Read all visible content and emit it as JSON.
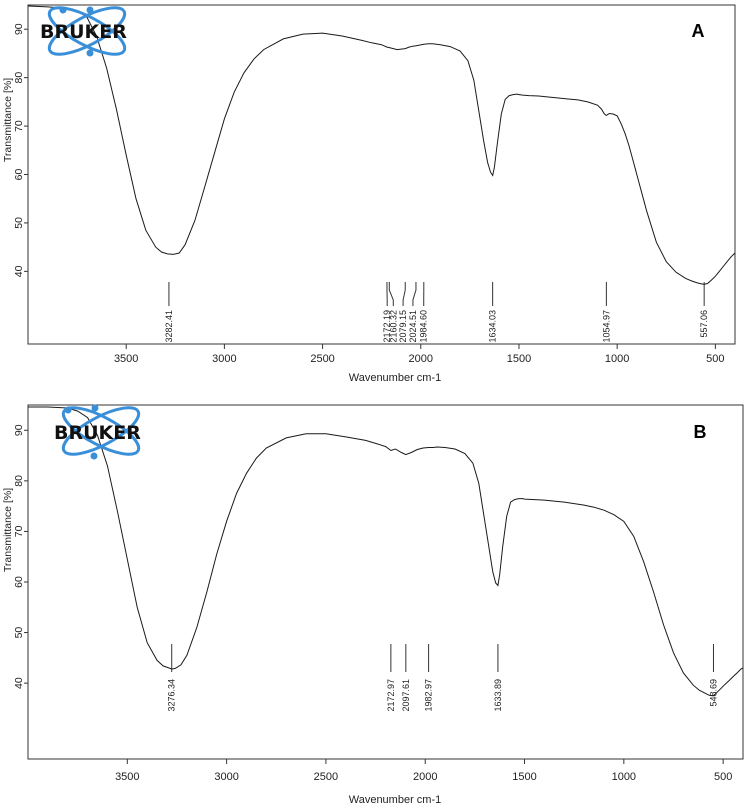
{
  "chart_data": [
    {
      "type": "line",
      "panel_label": "A",
      "logo_text": "BRUKER",
      "xlabel": "Wavenumber cm-1",
      "ylabel": "Transmittance [%]",
      "xlim": [
        4000,
        400
      ],
      "ylim": [
        25,
        95
      ],
      "x_reversed": true,
      "xticks": [
        "3500",
        "3000",
        "2500",
        "2000",
        "1500",
        "1000",
        "500"
      ],
      "yticks": [
        "40",
        "50",
        "60",
        "70",
        "80",
        "90"
      ],
      "series": [
        {
          "x": [
            4000,
            3900,
            3800,
            3750,
            3700,
            3650,
            3600,
            3550,
            3500,
            3450,
            3400,
            3350,
            3320,
            3290,
            3260,
            3230,
            3200,
            3150,
            3100,
            3050,
            3000,
            2950,
            2900,
            2850,
            2800,
            2700,
            2600,
            2500,
            2400,
            2300,
            2250,
            2200,
            2172,
            2160,
            2140,
            2120,
            2100,
            2079,
            2060,
            2040,
            2024,
            2010,
            1984,
            1960,
            1940,
            1900,
            1850,
            1800,
            1760,
            1730,
            1700,
            1680,
            1660,
            1645,
            1634,
            1625,
            1610,
            1590,
            1570,
            1550,
            1530,
            1510,
            1500,
            1480,
            1450,
            1400,
            1350,
            1300,
            1250,
            1200,
            1150,
            1100,
            1080,
            1065,
            1055,
            1040,
            1020,
            1000,
            980,
            960,
            940,
            920,
            900,
            850,
            800,
            750,
            700,
            650,
            620,
            590,
            570,
            557,
            540,
            520,
            500,
            480,
            460,
            440,
            420,
            400
          ],
          "y": [
            94.8,
            94.6,
            94.3,
            93.8,
            92.5,
            88.5,
            82.0,
            73.5,
            64.0,
            55.0,
            48.5,
            45.0,
            44.0,
            43.6,
            43.5,
            43.8,
            45.5,
            50.5,
            57.5,
            64.5,
            71.5,
            77.0,
            81.0,
            83.8,
            85.8,
            88.0,
            89.0,
            89.2,
            88.6,
            87.7,
            87.2,
            86.8,
            86.3,
            86.2,
            86.0,
            85.8,
            85.9,
            86.0,
            86.3,
            86.5,
            86.6,
            86.7,
            86.9,
            87.0,
            87.0,
            86.8,
            86.4,
            85.5,
            83.5,
            79.5,
            72.0,
            67.0,
            62.5,
            60.5,
            59.8,
            61.5,
            66.5,
            72.5,
            75.5,
            76.3,
            76.5,
            76.6,
            76.5,
            76.4,
            76.3,
            76.2,
            76.0,
            75.8,
            75.6,
            75.4,
            75.0,
            74.3,
            73.5,
            72.5,
            72.2,
            72.6,
            72.5,
            72.1,
            70.5,
            68.5,
            66.0,
            63.0,
            60.0,
            52.5,
            46.0,
            42.0,
            39.8,
            38.5,
            38.0,
            37.6,
            37.4,
            37.3,
            37.5,
            38.2,
            39.0,
            40.0,
            41.0,
            42.0,
            43.0,
            43.8
          ]
        }
      ],
      "peak_labels": [
        "3282.41",
        "2172.19",
        "2160.32",
        "2079.15",
        "2024.51",
        "1984.60",
        "1634.03",
        "1054.97",
        "557.06"
      ],
      "peak_values": [
        3282.41,
        2172.19,
        2160.32,
        2079.15,
        2024.51,
        1984.6,
        1634.03,
        1054.97,
        557.06
      ]
    },
    {
      "type": "line",
      "panel_label": "B",
      "logo_text": "BRUKER",
      "xlabel": "Wavenumber cm-1",
      "ylabel": "Transmittance [%]",
      "xlim": [
        4000,
        400
      ],
      "ylim": [
        25,
        95
      ],
      "x_reversed": true,
      "xticks": [
        "3500",
        "3000",
        "2500",
        "2000",
        "1500",
        "1000",
        "500"
      ],
      "yticks": [
        "40",
        "50",
        "60",
        "70",
        "80",
        "90"
      ],
      "series": [
        {
          "x": [
            4000,
            3900,
            3800,
            3750,
            3700,
            3650,
            3600,
            3550,
            3500,
            3450,
            3400,
            3350,
            3320,
            3290,
            3276,
            3260,
            3230,
            3200,
            3150,
            3100,
            3050,
            3000,
            2950,
            2900,
            2850,
            2800,
            2700,
            2600,
            2500,
            2400,
            2300,
            2250,
            2200,
            2173,
            2150,
            2120,
            2098,
            2070,
            2040,
            2010,
            1983,
            1960,
            1940,
            1900,
            1850,
            1800,
            1760,
            1730,
            1700,
            1680,
            1660,
            1645,
            1634,
            1625,
            1610,
            1590,
            1570,
            1550,
            1530,
            1510,
            1500,
            1450,
            1400,
            1350,
            1300,
            1250,
            1200,
            1150,
            1100,
            1050,
            1000,
            950,
            900,
            850,
            800,
            750,
            700,
            650,
            620,
            590,
            570,
            549,
            530,
            510,
            490,
            470,
            450,
            430,
            410,
            400
          ],
          "y": [
            94.6,
            94.6,
            94.4,
            93.8,
            92.5,
            89.0,
            83.0,
            74.0,
            64.5,
            55.0,
            48.0,
            44.5,
            43.4,
            43.0,
            42.8,
            42.9,
            43.6,
            45.5,
            51.0,
            58.0,
            65.5,
            72.0,
            77.5,
            81.5,
            84.5,
            86.5,
            88.5,
            89.3,
            89.3,
            88.7,
            88.0,
            87.4,
            86.8,
            86.0,
            86.3,
            85.6,
            85.2,
            85.6,
            86.2,
            86.5,
            86.6,
            86.6,
            86.7,
            86.6,
            86.3,
            85.4,
            83.5,
            79.5,
            72.0,
            67.0,
            62.0,
            59.8,
            59.3,
            61.5,
            67.0,
            73.0,
            75.8,
            76.3,
            76.5,
            76.5,
            76.4,
            76.3,
            76.2,
            76.0,
            75.8,
            75.5,
            75.2,
            74.8,
            74.2,
            73.3,
            72.0,
            69.0,
            64.0,
            58.0,
            51.5,
            46.0,
            42.0,
            39.6,
            38.6,
            38.0,
            37.6,
            37.5,
            38.2,
            39.0,
            39.8,
            40.5,
            41.3,
            42.0,
            42.8,
            43.0
          ]
        }
      ],
      "peak_labels": [
        "3276.34",
        "2172.97",
        "2097.61",
        "1982.97",
        "1633.89",
        "548.69"
      ],
      "peak_values": [
        3276.34,
        2172.97,
        2097.61,
        1982.97,
        1633.89,
        548.69
      ]
    }
  ]
}
